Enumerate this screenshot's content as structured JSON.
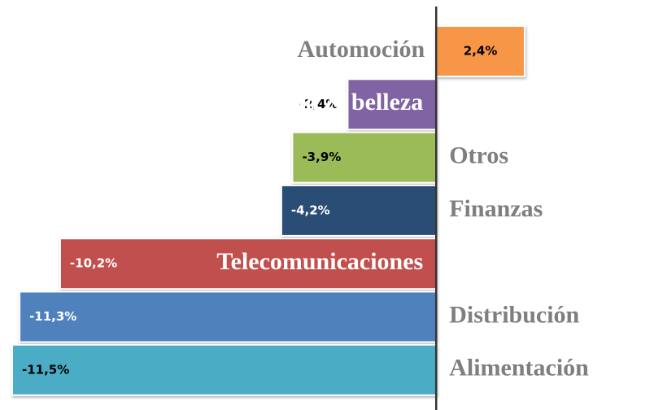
{
  "chart_data": {
    "type": "bar",
    "orientation": "horizontal",
    "categories": [
      "Automoción",
      "Salud & belleza",
      "Otros",
      "Finanzas",
      "Telecomunicaciones",
      "Distribución",
      "Alimentación"
    ],
    "values": [
      2.4,
      -2.4,
      -3.9,
      -4.2,
      -10.2,
      -11.3,
      -11.5
    ],
    "value_labels": [
      "2,4%",
      "-2,4%",
      "-3,9%",
      "-4,2%",
      "-10,2%",
      "-11,3%",
      "-11,5%"
    ],
    "colors": [
      "#f79646",
      "#8064a2",
      "#9bbb59",
      "#2c4d75",
      "#c0504d",
      "#4f81bd",
      "#4bacc6"
    ],
    "xlim": [
      -11.5,
      2.4
    ]
  }
}
